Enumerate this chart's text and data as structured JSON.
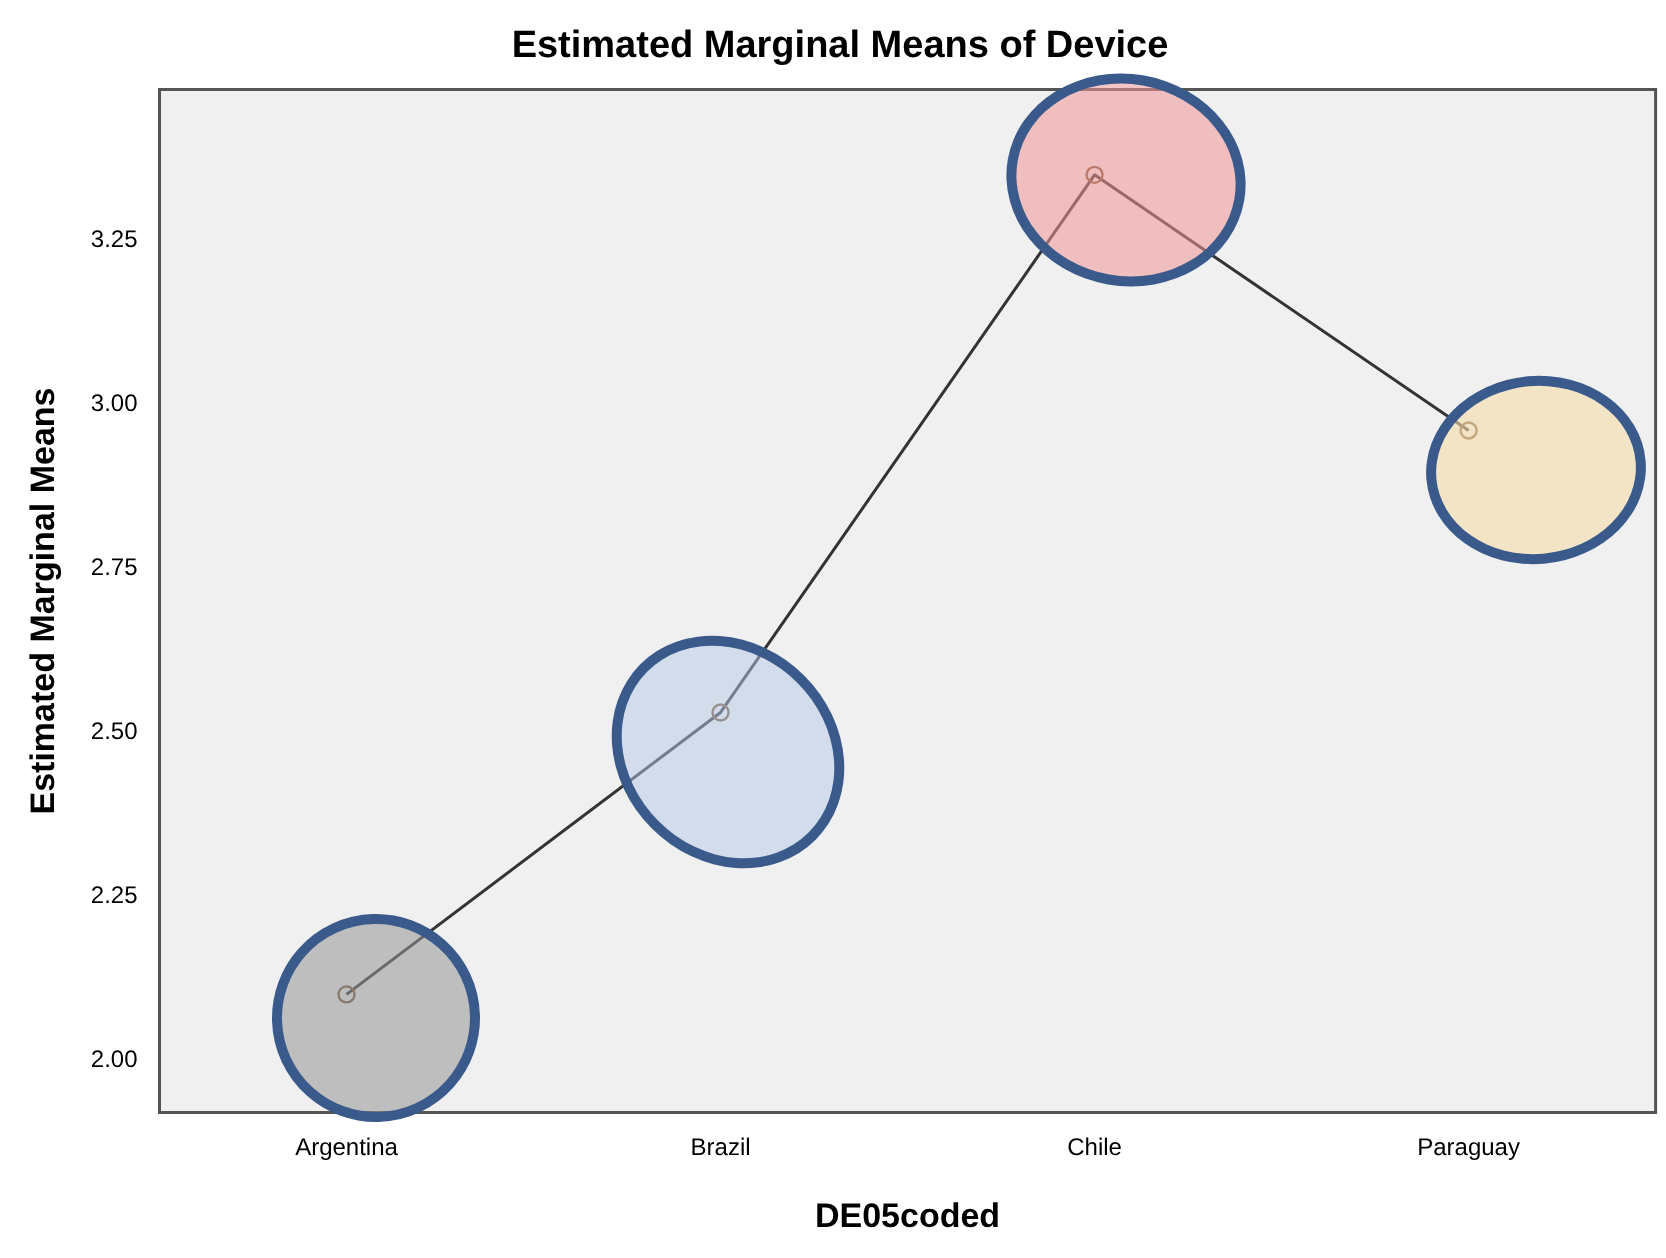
{
  "chart_data": {
    "type": "line",
    "title": "Estimated Marginal Means of Device",
    "xlabel": "DE05coded",
    "ylabel": "Estimated Marginal Means",
    "categories": [
      "Argentina",
      "Brazil",
      "Chile",
      "Paraguay"
    ],
    "series": [
      {
        "color": "#333333",
        "values": [
          2.1,
          2.53,
          3.35,
          2.96
        ]
      }
    ],
    "ylim": [
      1.92,
      3.48
    ],
    "yticks": [
      {
        "value": 2,
        "label": "2.00"
      },
      {
        "value": 2.25,
        "label": "2.25"
      },
      {
        "value": 2.5,
        "label": "2.50"
      },
      {
        "value": 2.75,
        "label": "2.75"
      },
      {
        "value": 3,
        "label": "3.00"
      },
      {
        "value": 3.25,
        "label": "3.25"
      }
    ],
    "grid": false,
    "legend": false,
    "marker": "circle",
    "line_style": "solid"
  }
}
